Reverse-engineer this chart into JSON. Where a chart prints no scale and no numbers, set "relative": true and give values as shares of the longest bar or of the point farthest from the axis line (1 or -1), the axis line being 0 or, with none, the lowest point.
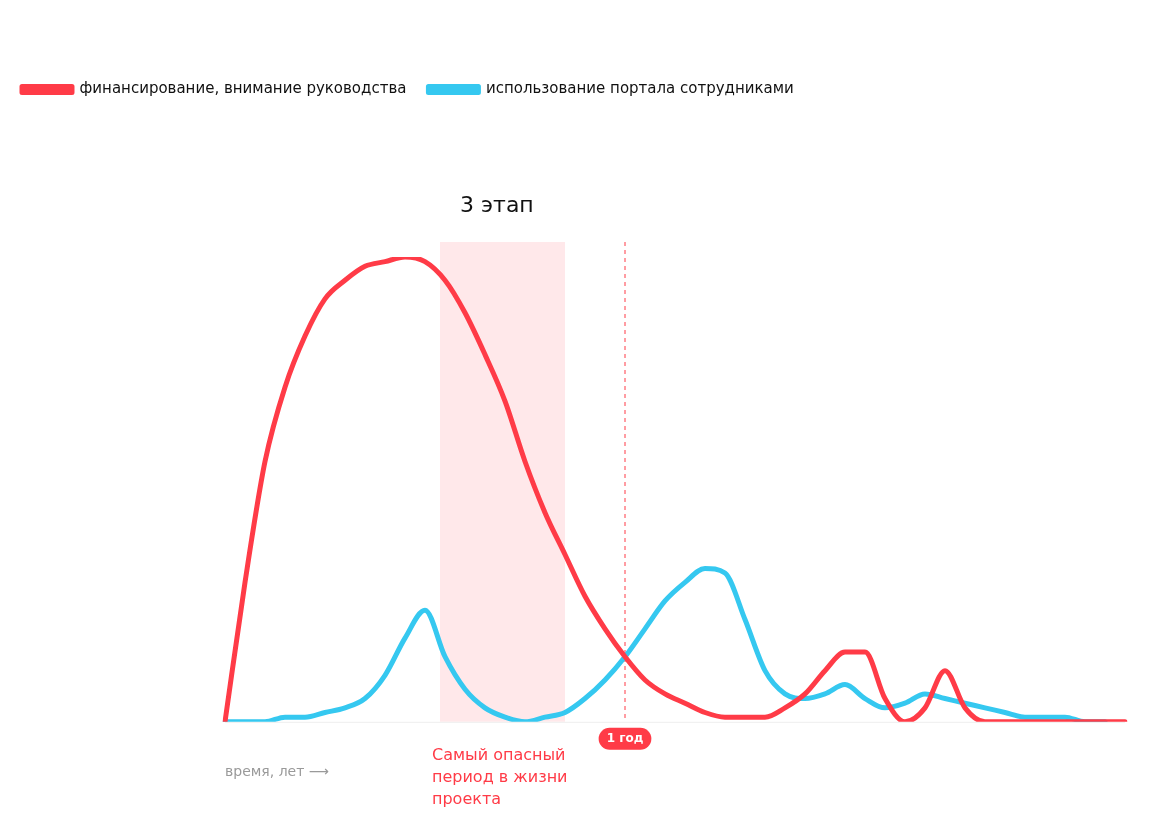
{
  "chart_data": {
    "type": "line",
    "relative": true,
    "xlabel": "время, лет ⟶",
    "categories": [
      null,
      null,
      null,
      null,
      null,
      null,
      null,
      null,
      null,
      null,
      null,
      null,
      null,
      null,
      null,
      null,
      null,
      null,
      null,
      null,
      null,
      null,
      null,
      null,
      null,
      null,
      null,
      null,
      null,
      null,
      null,
      null,
      null,
      null,
      null,
      null,
      null,
      null,
      null,
      null,
      null,
      null,
      null,
      null,
      null,
      null
    ],
    "series": [
      {
        "name": "финансирование, внимание руководства",
        "color": "#ff3b47",
        "values": [
          0,
          0.3,
          0.56,
          0.72,
          0.83,
          0.91,
          0.95,
          0.98,
          0.99,
          1.0,
          0.99,
          0.95,
          0.88,
          0.79,
          0.69,
          0.56,
          0.45,
          0.36,
          0.27,
          0.2,
          0.14,
          0.09,
          0.06,
          0.04,
          0.02,
          0.01,
          0.01,
          0.01,
          0.03,
          0.06,
          0.11,
          0.15,
          0.15,
          0.05,
          0,
          0.03,
          0.11,
          0.03,
          0,
          0,
          0,
          0,
          0,
          0,
          0,
          0
        ]
      },
      {
        "name": "использование портала сотрудниками",
        "color": "#35c8f0",
        "values": [
          0,
          0,
          0,
          0.01,
          0.01,
          0.02,
          0.03,
          0.05,
          0.1,
          0.18,
          0.24,
          0.14,
          0.07,
          0.03,
          0.01,
          0,
          0.01,
          0.02,
          0.05,
          0.09,
          0.14,
          0.2,
          0.26,
          0.3,
          0.33,
          0.32,
          0.22,
          0.11,
          0.06,
          0.05,
          0.06,
          0.08,
          0.05,
          0.03,
          0.04,
          0.06,
          0.05,
          0.04,
          0.03,
          0.02,
          0.01,
          0.01,
          0.01,
          0,
          0,
          null
        ]
      }
    ],
    "annotations": [
      "3 этап",
      "Самый опасный период в жизни проекта",
      "1 год"
    ],
    "legend": "top left",
    "grid": false,
    "marker": "none",
    "line_style": "solid"
  }
}
